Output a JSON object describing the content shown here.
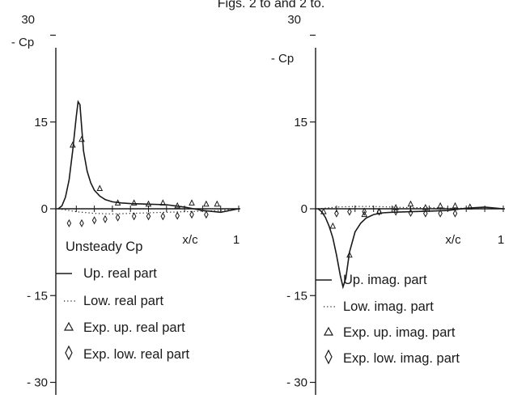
{
  "figure_caption": "Figs. 2 to and 2 to.",
  "chart_data": [
    {
      "type": "line",
      "title": "",
      "xlabel": "x/c",
      "ylabel": "- Cp",
      "ylim": [
        -30,
        30
      ],
      "xlim": [
        0,
        1
      ],
      "yticks": [
        "30",
        "15",
        "0",
        "- 15",
        "- 30"
      ],
      "yticks_values": [
        30,
        15,
        0,
        -15,
        -30
      ],
      "xtick_label": "1",
      "grid": false,
      "legend_title": "Unsteady Cp",
      "legend_placement": "bottom",
      "series": [
        {
          "name": "Up. real part",
          "style": "solid",
          "x": [
            0,
            0.02,
            0.04,
            0.06,
            0.08,
            0.1,
            0.11,
            0.12,
            0.13,
            0.14,
            0.16,
            0.18,
            0.2,
            0.23,
            0.26,
            0.3,
            0.35,
            0.4,
            0.5,
            0.6,
            0.7,
            0.8,
            0.9,
            1.0
          ],
          "y": [
            0,
            0.5,
            2,
            5,
            10,
            16,
            18.5,
            18,
            14,
            10,
            6.5,
            4.5,
            3.2,
            2.2,
            1.6,
            1.2,
            1.0,
            0.9,
            0.8,
            0.7,
            0.3,
            -0.3,
            -0.6,
            0
          ]
        },
        {
          "name": "Low. real part",
          "style": "dotted",
          "x": [
            0,
            0.1,
            0.2,
            0.3,
            0.4,
            0.5,
            0.6,
            0.7,
            0.8,
            0.9,
            1.0
          ],
          "y": [
            0,
            -0.5,
            -0.8,
            -0.9,
            -0.8,
            -0.7,
            -0.6,
            -0.5,
            -0.4,
            -0.3,
            0
          ]
        },
        {
          "name": "Exp. up. real part",
          "marker": "triangle",
          "x": [
            0.08,
            0.13,
            0.23,
            0.33,
            0.42,
            0.5,
            0.58,
            0.66,
            0.74,
            0.82,
            0.88
          ],
          "y": [
            11,
            12,
            3.5,
            1,
            1,
            0.8,
            1,
            0.5,
            1,
            0.8,
            0.8
          ]
        },
        {
          "name": "Exp. low. real part",
          "marker": "diamond",
          "x": [
            0.06,
            0.13,
            0.2,
            0.26,
            0.33,
            0.42,
            0.5,
            0.58,
            0.66,
            0.74,
            0.82
          ],
          "y": [
            -2.5,
            -2.5,
            -2,
            -1.8,
            -1.5,
            -1.3,
            -1.3,
            -1.3,
            -1.2,
            -1,
            -1
          ]
        }
      ]
    },
    {
      "type": "line",
      "title": "",
      "xlabel": "x/c",
      "ylabel": "- Cp",
      "ylim": [
        -30,
        30
      ],
      "xlim": [
        0,
        1
      ],
      "yticks": [
        "30",
        "15",
        "0",
        "- 15",
        "- 30"
      ],
      "yticks_values": [
        30,
        15,
        0,
        -15,
        -30
      ],
      "xtick_label": "1",
      "grid": false,
      "legend_title": "",
      "legend_placement": "bottom",
      "series": [
        {
          "name": "Up. imag. part",
          "style": "solid",
          "x": [
            0,
            0.02,
            0.04,
            0.06,
            0.08,
            0.1,
            0.12,
            0.135,
            0.15,
            0.17,
            0.2,
            0.23,
            0.26,
            0.3,
            0.35,
            0.4,
            0.5,
            0.6,
            0.7,
            0.8,
            0.9,
            1.0
          ],
          "y": [
            0,
            -0.5,
            -1.5,
            -3,
            -5,
            -8,
            -11.5,
            -13.5,
            -12,
            -7.5,
            -4,
            -2.5,
            -1.6,
            -1.0,
            -0.7,
            -0.6,
            -0.5,
            -0.4,
            -0.3,
            0.1,
            0.3,
            0
          ]
        },
        {
          "name": "Low. imag. part",
          "style": "dotted",
          "x": [
            0,
            0.1,
            0.2,
            0.3,
            0.4,
            0.5,
            0.6,
            0.7,
            0.8,
            0.9,
            1.0
          ],
          "y": [
            0,
            0.3,
            0.4,
            0.4,
            0.3,
            0.2,
            0.2,
            0.1,
            0.1,
            0,
            0
          ]
        },
        {
          "name": "Exp. up. imag. part",
          "marker": "triangle",
          "x": [
            0.03,
            0.08,
            0.17,
            0.25,
            0.33,
            0.42,
            0.5,
            0.58,
            0.66,
            0.74,
            0.82
          ],
          "y": [
            -0.5,
            -3,
            -8,
            -1,
            -0.5,
            0.2,
            0.8,
            0.2,
            0.5,
            0.5,
            0.3
          ]
        },
        {
          "name": "Exp. low. imag. part",
          "marker": "diamond",
          "x": [
            0.1,
            0.17,
            0.25,
            0.33,
            0.42,
            0.5,
            0.58,
            0.66,
            0.74
          ],
          "y": [
            -0.8,
            -0.5,
            -0.5,
            -0.5,
            -0.5,
            -0.7,
            -0.8,
            -0.8,
            -0.8
          ]
        }
      ]
    }
  ]
}
